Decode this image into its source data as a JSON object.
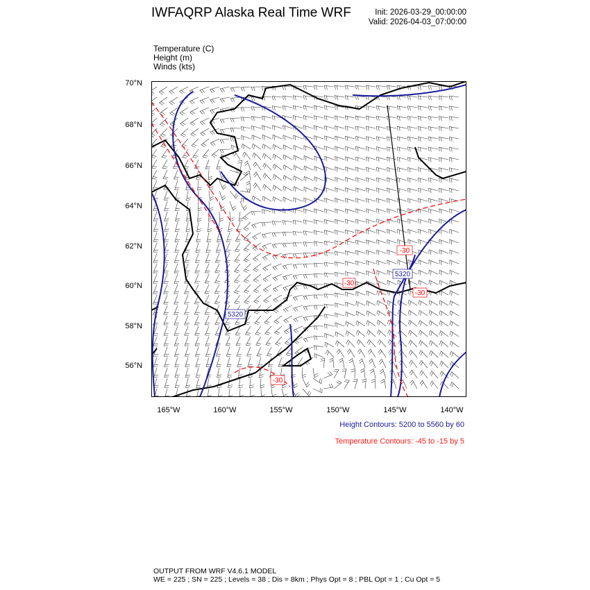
{
  "header": {
    "title": "IWFAQRP Alaska Real Time WRF",
    "init": "Init: 2026-03-29_00:00:00",
    "valid": "Valid: 2026-04-03_07:00:00"
  },
  "fields": [
    "Temperature   (C)",
    "Height   (m)",
    "Winds   (kts)"
  ],
  "map": {
    "lat_labels": [
      "70°N",
      "68°N",
      "66°N",
      "64°N",
      "62°N",
      "60°N",
      "58°N",
      "56°N"
    ],
    "lon_labels": [
      "165°W",
      "160°W",
      "155°W",
      "150°W",
      "145°W",
      "140°W"
    ],
    "height_contour_labels": [
      "5320",
      "5320"
    ],
    "temperature_contour_labels": [
      "-30",
      "-30",
      "-30",
      "-30"
    ],
    "colors": {
      "height": "#1a1a9a",
      "temperature": "#ff0000",
      "coast": "#000000",
      "barbs": "#000000"
    }
  },
  "legend": {
    "height": "Height Contours: 5200 to 5560 by 60",
    "temperature": "Temperature Contours: -45 to -15 by 5"
  },
  "footer": {
    "line1": "OUTPUT FROM WRF V4.6.1 MODEL",
    "line2": "WE = 225 ; SN = 225 ; Levels = 38 ; Dis = 8km ; Phys Opt = 8 ; PBL Opt = 1 ; Cu Opt = 5"
  }
}
